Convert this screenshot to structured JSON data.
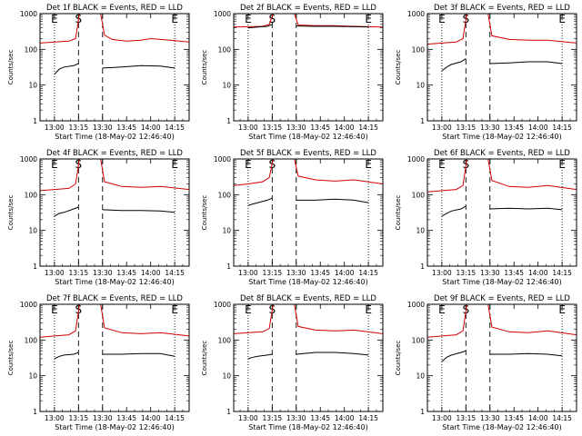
{
  "chart_data": {
    "type": "line",
    "layout": "3x3 grid",
    "y_scale": "log",
    "ylim": [
      1,
      1000
    ],
    "y_ticks": [
      "1",
      "10",
      "100",
      "1000"
    ],
    "x_tick_labels": [
      "13:00",
      "13:15",
      "13:30",
      "13:45",
      "14:00",
      "14:15"
    ],
    "x_range_hours": [
      12.85,
      14.4
    ],
    "xlabel": "Start Time (18-May-02 12:46:40)",
    "ylabel": "Counts/sec",
    "markers": [
      {
        "label": "E",
        "time": 13.0,
        "style": "dotted"
      },
      {
        "label": "S",
        "time": 13.25,
        "style": "dashed"
      },
      {
        "label": "",
        "time": 13.5,
        "style": "dashed"
      },
      {
        "label": "E",
        "time": 14.25,
        "style": "dotted"
      }
    ],
    "series_colors": {
      "events": "#000000",
      "lld": "#d40000"
    },
    "panels": [
      {
        "title": "Det 1f BLACK = Events, RED = LLD",
        "events": [
          [
            13.0,
            20
          ],
          [
            13.05,
            28
          ],
          [
            13.1,
            32
          ],
          [
            13.2,
            35
          ],
          [
            13.25,
            40
          ],
          [
            13.5,
            30
          ],
          [
            13.7,
            32
          ],
          [
            13.9,
            35
          ],
          [
            14.1,
            34
          ],
          [
            14.25,
            30
          ]
        ],
        "lld": [
          [
            12.85,
            150
          ],
          [
            13.0,
            160
          ],
          [
            13.15,
            170
          ],
          [
            13.22,
            200
          ],
          [
            13.26,
            1000
          ],
          [
            13.48,
            1000
          ],
          [
            13.52,
            250
          ],
          [
            13.6,
            190
          ],
          [
            13.75,
            170
          ],
          [
            13.9,
            180
          ],
          [
            14.0,
            200
          ],
          [
            14.2,
            180
          ],
          [
            14.4,
            160
          ]
        ]
      },
      {
        "title": "Det 2f BLACK = Events, RED = LLD",
        "events": [
          [
            13.0,
            400
          ],
          [
            13.1,
            420
          ],
          [
            13.2,
            440
          ],
          [
            13.25,
            500
          ],
          [
            13.5,
            450
          ],
          [
            13.7,
            440
          ],
          [
            13.9,
            440
          ],
          [
            14.1,
            430
          ],
          [
            14.25,
            420
          ]
        ],
        "lld": [
          [
            12.85,
            420
          ],
          [
            13.0,
            430
          ],
          [
            13.15,
            440
          ],
          [
            13.22,
            500
          ],
          [
            13.26,
            1000
          ],
          [
            13.48,
            1000
          ],
          [
            13.52,
            480
          ],
          [
            13.7,
            460
          ],
          [
            13.9,
            460
          ],
          [
            14.1,
            440
          ],
          [
            14.4,
            420
          ]
        ]
      },
      {
        "title": "Det 3f BLACK = Events, RED = LLD",
        "events": [
          [
            13.0,
            25
          ],
          [
            13.05,
            32
          ],
          [
            13.1,
            38
          ],
          [
            13.2,
            45
          ],
          [
            13.25,
            55
          ],
          [
            13.5,
            40
          ],
          [
            13.7,
            42
          ],
          [
            13.9,
            45
          ],
          [
            14.1,
            45
          ],
          [
            14.25,
            40
          ]
        ],
        "lld": [
          [
            12.85,
            140
          ],
          [
            13.0,
            150
          ],
          [
            13.15,
            160
          ],
          [
            13.22,
            200
          ],
          [
            13.26,
            1000
          ],
          [
            13.48,
            1000
          ],
          [
            13.52,
            240
          ],
          [
            13.7,
            190
          ],
          [
            13.9,
            180
          ],
          [
            14.1,
            180
          ],
          [
            14.4,
            150
          ]
        ]
      },
      {
        "title": "Det 4f BLACK = Events, RED = LLD",
        "events": [
          [
            13.0,
            25
          ],
          [
            13.05,
            30
          ],
          [
            13.1,
            32
          ],
          [
            13.2,
            40
          ],
          [
            13.25,
            45
          ],
          [
            13.5,
            38
          ],
          [
            13.7,
            36
          ],
          [
            13.9,
            36
          ],
          [
            14.1,
            35
          ],
          [
            14.25,
            32
          ]
        ],
        "lld": [
          [
            12.85,
            130
          ],
          [
            13.0,
            140
          ],
          [
            13.15,
            150
          ],
          [
            13.22,
            200
          ],
          [
            13.26,
            1000
          ],
          [
            13.48,
            1000
          ],
          [
            13.52,
            230
          ],
          [
            13.7,
            170
          ],
          [
            13.9,
            160
          ],
          [
            14.1,
            170
          ],
          [
            14.4,
            140
          ]
        ]
      },
      {
        "title": "Det 5f BLACK = Events, RED = LLD",
        "events": [
          [
            13.0,
            50
          ],
          [
            13.05,
            55
          ],
          [
            13.1,
            60
          ],
          [
            13.2,
            70
          ],
          [
            13.25,
            80
          ],
          [
            13.5,
            70
          ],
          [
            13.7,
            70
          ],
          [
            13.9,
            75
          ],
          [
            14.1,
            70
          ],
          [
            14.25,
            60
          ]
        ],
        "lld": [
          [
            12.85,
            180
          ],
          [
            13.0,
            200
          ],
          [
            13.15,
            230
          ],
          [
            13.22,
            300
          ],
          [
            13.26,
            1000
          ],
          [
            13.48,
            1000
          ],
          [
            13.52,
            330
          ],
          [
            13.7,
            260
          ],
          [
            13.9,
            240
          ],
          [
            14.1,
            260
          ],
          [
            14.4,
            200
          ]
        ]
      },
      {
        "title": "Det 6f BLACK = Events, RED = LLD",
        "events": [
          [
            13.0,
            25
          ],
          [
            13.05,
            30
          ],
          [
            13.1,
            35
          ],
          [
            13.2,
            40
          ],
          [
            13.25,
            48
          ],
          [
            13.5,
            40
          ],
          [
            13.7,
            42
          ],
          [
            13.9,
            40
          ],
          [
            14.1,
            42
          ],
          [
            14.25,
            38
          ]
        ],
        "lld": [
          [
            12.85,
            120
          ],
          [
            13.0,
            130
          ],
          [
            13.15,
            140
          ],
          [
            13.22,
            180
          ],
          [
            13.26,
            1000
          ],
          [
            13.48,
            1000
          ],
          [
            13.52,
            250
          ],
          [
            13.7,
            170
          ],
          [
            13.9,
            160
          ],
          [
            14.1,
            180
          ],
          [
            14.4,
            140
          ]
        ]
      },
      {
        "title": "Det 7f BLACK = Events, RED = LLD",
        "events": [
          [
            13.0,
            30
          ],
          [
            13.05,
            35
          ],
          [
            13.1,
            38
          ],
          [
            13.2,
            40
          ],
          [
            13.25,
            45
          ],
          [
            13.5,
            40
          ],
          [
            13.7,
            40
          ],
          [
            13.9,
            42
          ],
          [
            14.1,
            42
          ],
          [
            14.25,
            35
          ]
        ],
        "lld": [
          [
            12.85,
            120
          ],
          [
            13.0,
            130
          ],
          [
            13.15,
            140
          ],
          [
            13.22,
            180
          ],
          [
            13.26,
            1000
          ],
          [
            13.48,
            1000
          ],
          [
            13.52,
            220
          ],
          [
            13.7,
            160
          ],
          [
            13.9,
            150
          ],
          [
            14.1,
            160
          ],
          [
            14.4,
            130
          ]
        ]
      },
      {
        "title": "Det 8f BLACK = Events, RED = LLD",
        "events": [
          [
            13.0,
            30
          ],
          [
            13.05,
            33
          ],
          [
            13.1,
            35
          ],
          [
            13.2,
            38
          ],
          [
            13.25,
            40
          ],
          [
            13.5,
            40
          ],
          [
            13.7,
            45
          ],
          [
            13.9,
            45
          ],
          [
            14.1,
            42
          ],
          [
            14.25,
            38
          ]
        ],
        "lld": [
          [
            12.85,
            150
          ],
          [
            13.0,
            160
          ],
          [
            13.15,
            170
          ],
          [
            13.22,
            210
          ],
          [
            13.26,
            1000
          ],
          [
            13.48,
            1000
          ],
          [
            13.52,
            240
          ],
          [
            13.7,
            190
          ],
          [
            13.9,
            180
          ],
          [
            14.1,
            190
          ],
          [
            14.4,
            150
          ]
        ]
      },
      {
        "title": "Det 9f BLACK = Events, RED = LLD",
        "events": [
          [
            13.0,
            25
          ],
          [
            13.05,
            33
          ],
          [
            13.1,
            38
          ],
          [
            13.2,
            45
          ],
          [
            13.25,
            50
          ],
          [
            13.5,
            40
          ],
          [
            13.7,
            40
          ],
          [
            13.9,
            42
          ],
          [
            14.1,
            40
          ],
          [
            14.25,
            36
          ]
        ],
        "lld": [
          [
            12.85,
            120
          ],
          [
            13.0,
            130
          ],
          [
            13.15,
            140
          ],
          [
            13.22,
            180
          ],
          [
            13.26,
            1000
          ],
          [
            13.48,
            1000
          ],
          [
            13.52,
            230
          ],
          [
            13.7,
            170
          ],
          [
            13.9,
            160
          ],
          [
            14.1,
            180
          ],
          [
            14.4,
            140
          ]
        ]
      }
    ]
  }
}
